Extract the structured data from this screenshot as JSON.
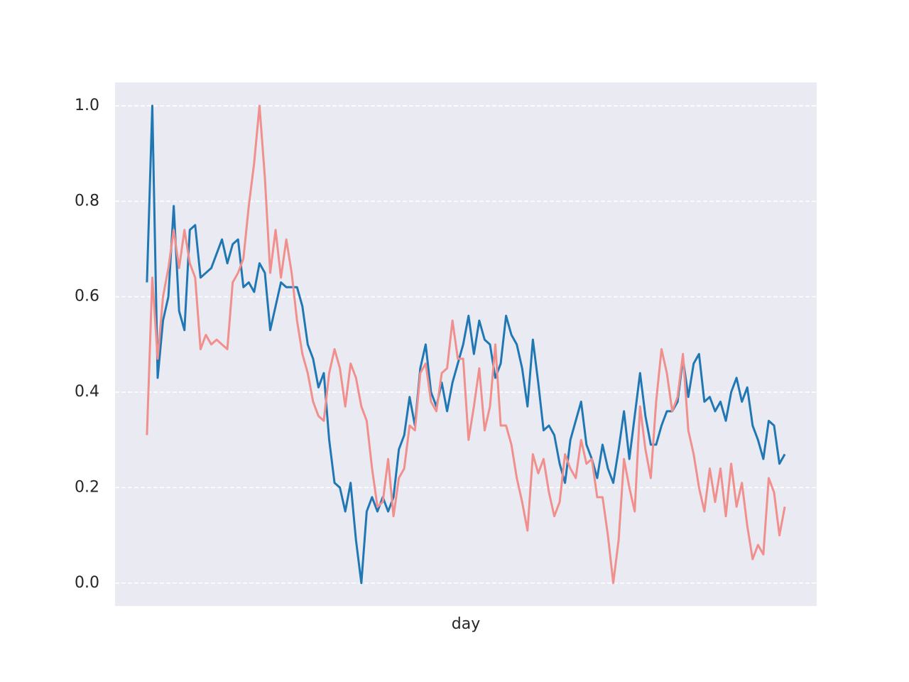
{
  "chart_data": {
    "type": "line",
    "xlabel": "day",
    "ylim": [
      -0.048,
      1.049
    ],
    "yticks": [
      {
        "value": 0,
        "label": "0.0"
      },
      0.2,
      0.4,
      0.6,
      0.8,
      {
        "value": 1,
        "label": "1.0"
      }
    ],
    "grid": true,
    "series": [
      {
        "color": "#1f77b4",
        "values": [
          0.63,
          1.0,
          0.43,
          0.55,
          0.6,
          0.79,
          0.57,
          0.53,
          0.74,
          0.75,
          0.64,
          0.65,
          0.66,
          0.69,
          0.72,
          0.67,
          0.71,
          0.72,
          0.62,
          0.63,
          0.61,
          0.67,
          0.65,
          0.53,
          0.58,
          0.63,
          0.62,
          0.62,
          0.62,
          0.58,
          0.5,
          0.47,
          0.41,
          0.44,
          0.3,
          0.21,
          0.2,
          0.15,
          0.21,
          0.09,
          0.0,
          0.15,
          0.18,
          0.15,
          0.18,
          0.15,
          0.18,
          0.28,
          0.31,
          0.39,
          0.33,
          0.45,
          0.5,
          0.4,
          0.37,
          0.42,
          0.36,
          0.42,
          0.46,
          0.5,
          0.56,
          0.48,
          0.55,
          0.51,
          0.5,
          0.43,
          0.46,
          0.56,
          0.52,
          0.5,
          0.45,
          0.37,
          0.51,
          0.42,
          0.32,
          0.33,
          0.31,
          0.25,
          0.21,
          0.3,
          0.34,
          0.38,
          0.29,
          0.26,
          0.22,
          0.29,
          0.24,
          0.21,
          0.28,
          0.36,
          0.26,
          0.35,
          0.44,
          0.35,
          0.29,
          0.29,
          0.33,
          0.36,
          0.36,
          0.38,
          0.47,
          0.39,
          0.46,
          0.48,
          0.38,
          0.39,
          0.36,
          0.38,
          0.34,
          0.4,
          0.43,
          0.38,
          0.41,
          0.33,
          0.3,
          0.26,
          0.34,
          0.33,
          0.25,
          0.27
        ]
      },
      {
        "color": "#f08f8c",
        "values": [
          0.31,
          0.64,
          0.47,
          0.6,
          0.66,
          0.74,
          0.66,
          0.74,
          0.67,
          0.64,
          0.49,
          0.52,
          0.5,
          0.51,
          0.5,
          0.49,
          0.63,
          0.65,
          0.68,
          0.79,
          0.88,
          1.0,
          0.85,
          0.65,
          0.74,
          0.64,
          0.72,
          0.65,
          0.55,
          0.48,
          0.44,
          0.38,
          0.35,
          0.34,
          0.44,
          0.49,
          0.45,
          0.37,
          0.46,
          0.43,
          0.37,
          0.34,
          0.24,
          0.16,
          0.17,
          0.26,
          0.14,
          0.22,
          0.24,
          0.33,
          0.32,
          0.44,
          0.46,
          0.38,
          0.36,
          0.44,
          0.45,
          0.55,
          0.47,
          0.47,
          0.3,
          0.37,
          0.45,
          0.32,
          0.37,
          0.5,
          0.33,
          0.33,
          0.29,
          0.22,
          0.17,
          0.11,
          0.27,
          0.23,
          0.26,
          0.19,
          0.14,
          0.17,
          0.27,
          0.24,
          0.22,
          0.3,
          0.25,
          0.26,
          0.18,
          0.18,
          0.1,
          0.0,
          0.09,
          0.26,
          0.2,
          0.15,
          0.37,
          0.28,
          0.22,
          0.38,
          0.49,
          0.44,
          0.36,
          0.39,
          0.48,
          0.32,
          0.27,
          0.2,
          0.15,
          0.24,
          0.17,
          0.24,
          0.14,
          0.25,
          0.16,
          0.21,
          0.12,
          0.05,
          0.08,
          0.06,
          0.22,
          0.19,
          0.1,
          0.16
        ]
      }
    ]
  }
}
